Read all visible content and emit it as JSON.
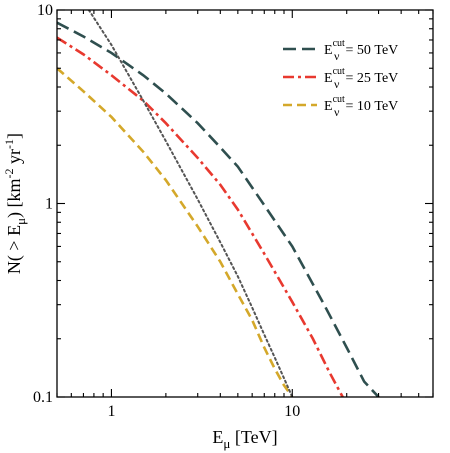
{
  "chart_data": {
    "type": "line",
    "xscale": "log",
    "yscale": "log",
    "xlim": [
      0.5,
      60
    ],
    "ylim": [
      0.1,
      10
    ],
    "x_ticks": [
      {
        "value": 1,
        "label": "1"
      },
      {
        "value": 10,
        "label": "10"
      }
    ],
    "y_ticks": [
      {
        "value": 0.1,
        "label": "0.1"
      },
      {
        "value": 1,
        "label": "1"
      },
      {
        "value": 10,
        "label": "10"
      }
    ],
    "xlabel": {
      "main": "E",
      "sub": "μ",
      "rest": " [TeV]"
    },
    "ylabel": {
      "pre": "N( > E",
      "sub": "μ",
      "mid": ") [km",
      "sup1": "-2",
      "mid2": " yr",
      "sup2": "-1",
      "post": "]"
    },
    "legend_position": "top-right",
    "grid": false,
    "series": [
      {
        "name": "50 TeV",
        "legend": {
          "base": "E",
          "sup": "cut",
          "sub": "ν",
          "rest": " = 50 TeV"
        },
        "color": "#2f4f4f",
        "dash": "long-dash",
        "x": [
          0.5,
          0.7,
          1,
          1.5,
          2,
          3,
          4,
          5,
          7,
          10,
          15,
          20,
          25,
          30
        ],
        "y": [
          8.6,
          7.3,
          6.0,
          4.6,
          3.7,
          2.6,
          1.95,
          1.55,
          0.98,
          0.6,
          0.3,
          0.18,
          0.12,
          0.1
        ]
      },
      {
        "name": "25 TeV",
        "legend": {
          "base": "E",
          "sup": "cut",
          "sub": "ν",
          "rest": " = 25 TeV"
        },
        "color": "#e8392f",
        "dash": "dash-dot",
        "x": [
          0.5,
          0.7,
          1,
          1.5,
          2,
          3,
          4,
          5,
          7,
          10,
          13,
          16,
          19
        ],
        "y": [
          7.2,
          5.9,
          4.6,
          3.4,
          2.6,
          1.72,
          1.25,
          0.93,
          0.55,
          0.31,
          0.2,
          0.135,
          0.1
        ]
      },
      {
        "name": "10 TeV",
        "legend": {
          "base": "E",
          "sup": "cut",
          "sub": "ν",
          "rest": " = 10 TeV"
        },
        "color": "#d4a82a",
        "dash": "dash",
        "x": [
          0.5,
          0.7,
          1,
          1.5,
          2,
          3,
          4,
          5,
          6,
          7,
          8,
          9,
          10
        ],
        "y": [
          5.0,
          3.8,
          2.8,
          1.85,
          1.32,
          0.76,
          0.5,
          0.34,
          0.25,
          0.18,
          0.14,
          0.115,
          0.1
        ]
      },
      {
        "name": "",
        "color": "#555555",
        "dash": "dot",
        "x": [
          0.75,
          1,
          1.5,
          2,
          3,
          4,
          5,
          6,
          7,
          8,
          9,
          10
        ],
        "y": [
          10,
          6.6,
          3.4,
          2.1,
          1.05,
          0.63,
          0.42,
          0.29,
          0.21,
          0.16,
          0.125,
          0.1
        ]
      }
    ]
  }
}
